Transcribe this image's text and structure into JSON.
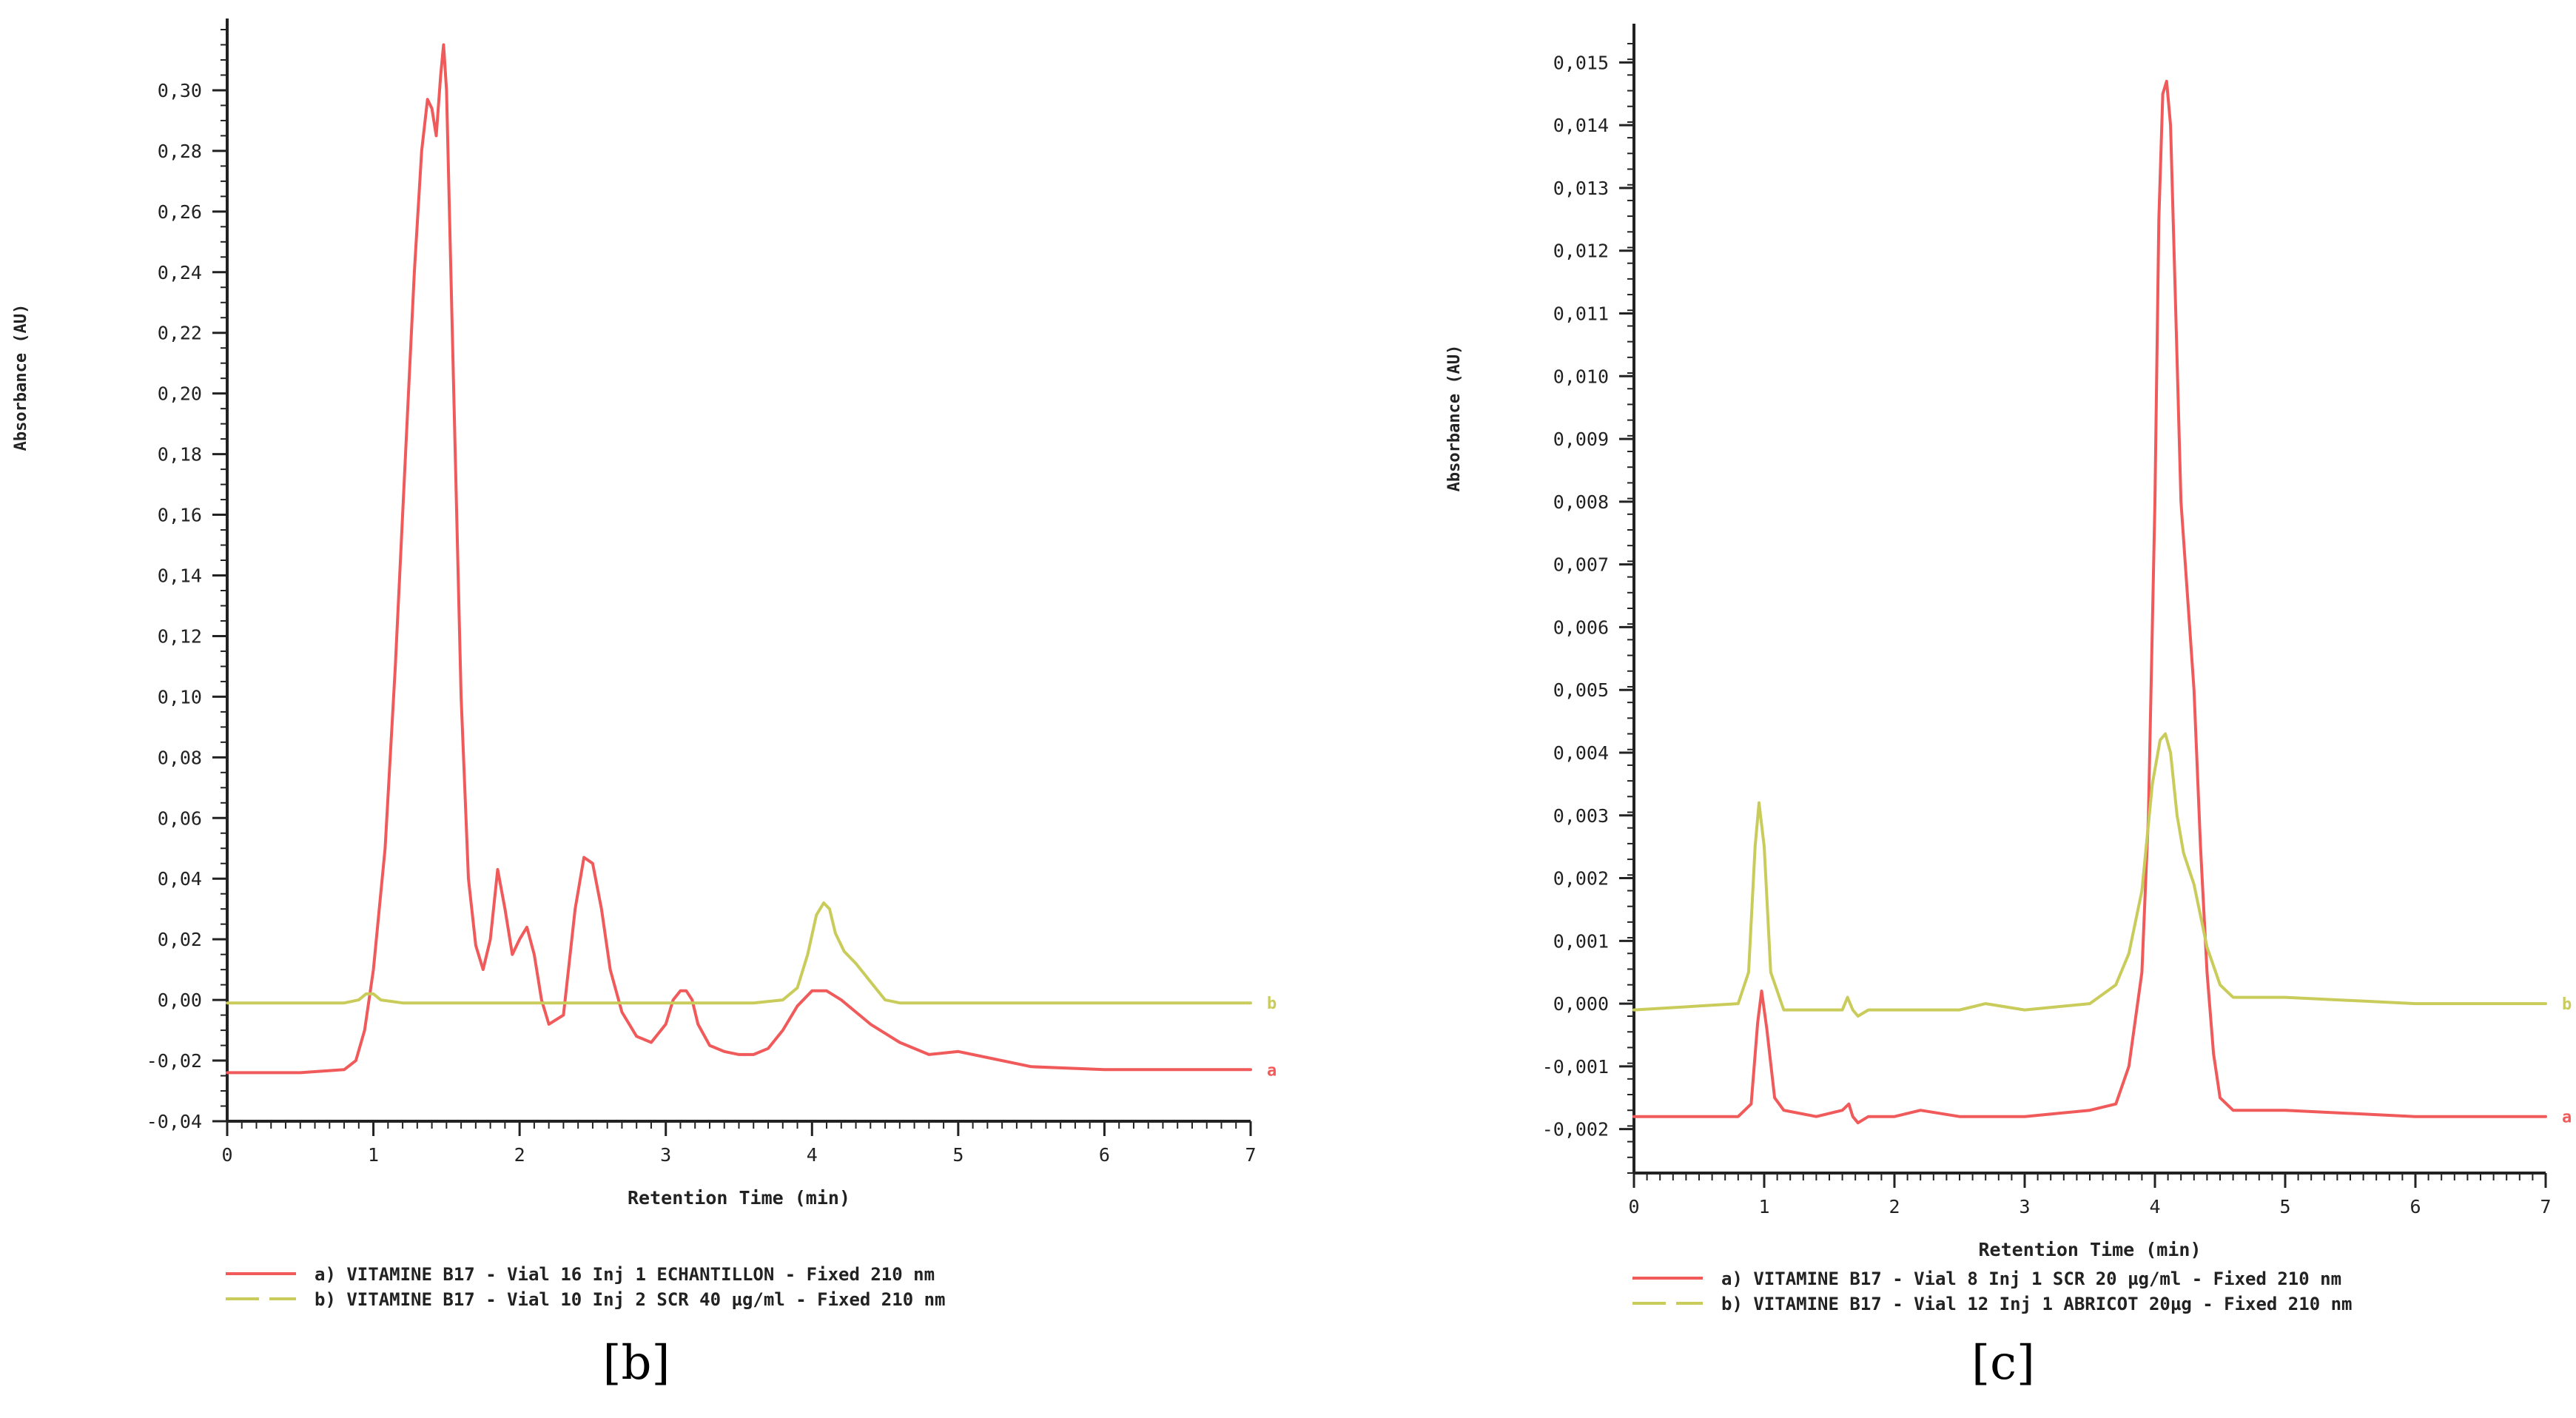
{
  "chart_data": [
    {
      "type": "line",
      "caption": "[b]",
      "xlabel": "Retention Time (min)",
      "ylabel": "Absorbance (AU)",
      "xlim": [
        0,
        7
      ],
      "ylim": [
        -0.04,
        0.32
      ],
      "xticks": [
        0,
        1,
        2,
        3,
        4,
        5,
        6,
        7
      ],
      "xtick_labels": [
        "0",
        "1",
        "2",
        "3",
        "4",
        "5",
        "6",
        "7"
      ],
      "yticks": [
        -0.04,
        -0.02,
        0.0,
        0.02,
        0.04,
        0.06,
        0.08,
        0.1,
        0.12,
        0.14,
        0.16,
        0.18,
        0.2,
        0.22,
        0.24,
        0.26,
        0.28,
        0.3
      ],
      "ytick_labels": [
        "-0,04",
        "-0,02",
        "0,00",
        "0,02",
        "0,04",
        "0,06",
        "0,08",
        "0,10",
        "0,12",
        "0,14",
        "0,16",
        "0,18",
        "0,20",
        "0,22",
        "0,24",
        "0,26",
        "0,28",
        "0,30"
      ],
      "series": [
        {
          "name": "a) VITAMINE B17 - Vial 16 Inj 1 ECHANTILLON  - Fixed 210 nm",
          "end_label": "a",
          "color": "#f05a5a",
          "dash": "solid",
          "x": [
            0,
            0.5,
            0.8,
            0.88,
            0.94,
            1.0,
            1.08,
            1.15,
            1.22,
            1.28,
            1.33,
            1.37,
            1.4,
            1.43,
            1.46,
            1.48,
            1.5,
            1.55,
            1.6,
            1.65,
            1.7,
            1.75,
            1.8,
            1.85,
            1.9,
            1.95,
            2.0,
            2.05,
            2.1,
            2.15,
            2.2,
            2.3,
            2.38,
            2.44,
            2.5,
            2.56,
            2.62,
            2.7,
            2.8,
            2.9,
            3.0,
            3.05,
            3.1,
            3.14,
            3.18,
            3.22,
            3.3,
            3.4,
            3.5,
            3.6,
            3.7,
            3.8,
            3.9,
            4.0,
            4.1,
            4.2,
            4.3,
            4.4,
            4.6,
            4.8,
            5.0,
            5.2,
            5.5,
            6.0,
            6.5,
            7.0
          ],
          "y": [
            -0.024,
            -0.024,
            -0.023,
            -0.02,
            -0.01,
            0.01,
            0.05,
            0.11,
            0.18,
            0.24,
            0.28,
            0.297,
            0.294,
            0.285,
            0.305,
            0.315,
            0.3,
            0.2,
            0.1,
            0.04,
            0.018,
            0.01,
            0.02,
            0.043,
            0.03,
            0.015,
            0.02,
            0.024,
            0.015,
            0.0,
            -0.008,
            -0.005,
            0.03,
            0.047,
            0.045,
            0.03,
            0.01,
            -0.004,
            -0.012,
            -0.014,
            -0.008,
            0.0,
            0.003,
            0.003,
            0.0,
            -0.008,
            -0.015,
            -0.017,
            -0.018,
            -0.018,
            -0.016,
            -0.01,
            -0.002,
            0.003,
            0.003,
            0.0,
            -0.004,
            -0.008,
            -0.014,
            -0.018,
            -0.017,
            -0.019,
            -0.022,
            -0.023,
            -0.023,
            -0.023
          ]
        },
        {
          "name": "b) VITAMINE B17 - Vial 10 Inj 2 SCR 40 µg/ml - Fixed 210 nm",
          "end_label": "b",
          "color": "#c9cc5a",
          "dash": "dashed",
          "x": [
            0,
            0.8,
            0.9,
            0.95,
            1.0,
            1.05,
            1.2,
            2.0,
            3.0,
            3.6,
            3.8,
            3.9,
            3.97,
            4.03,
            4.08,
            4.12,
            4.16,
            4.22,
            4.3,
            4.4,
            4.5,
            4.6,
            5.0,
            6.0,
            7.0
          ],
          "y": [
            -0.001,
            -0.001,
            0.0,
            0.002,
            0.002,
            0.0,
            -0.001,
            -0.001,
            -0.001,
            -0.001,
            0.0,
            0.004,
            0.015,
            0.028,
            0.032,
            0.03,
            0.022,
            0.016,
            0.012,
            0.006,
            0.0,
            -0.001,
            -0.001,
            -0.001,
            -0.001
          ]
        }
      ]
    },
    {
      "type": "line",
      "caption": "[c]",
      "xlabel": "Retention Time (min)",
      "ylabel": "Absorbance (AU)",
      "xlim": [
        0,
        7
      ],
      "ylim": [
        -0.0027,
        0.0155
      ],
      "xticks": [
        0,
        1,
        2,
        3,
        4,
        5,
        6,
        7
      ],
      "xtick_labels": [
        "0",
        "1",
        "2",
        "3",
        "4",
        "5",
        "6",
        "7"
      ],
      "yticks": [
        -0.002,
        -0.001,
        0.0,
        0.001,
        0.002,
        0.003,
        0.004,
        0.005,
        0.006,
        0.007,
        0.008,
        0.009,
        0.01,
        0.011,
        0.012,
        0.013,
        0.014,
        0.015
      ],
      "ytick_labels": [
        "-0,002",
        "-0,001",
        "0,000",
        "0,001",
        "0,002",
        "0,003",
        "0,004",
        "0,005",
        "0,006",
        "0,007",
        "0,008",
        "0,009",
        "0,010",
        "0,011",
        "0,012",
        "0,013",
        "0,014",
        "0,015"
      ],
      "series": [
        {
          "name": "a) VITAMINE B17 - Vial 8 Inj 1 SCR 20 µg/ml - Fixed 210 nm",
          "end_label": "a",
          "color": "#f05a5a",
          "dash": "solid",
          "x": [
            0,
            0.8,
            0.9,
            0.95,
            0.98,
            1.02,
            1.08,
            1.15,
            1.4,
            1.6,
            1.65,
            1.68,
            1.72,
            1.8,
            2.0,
            2.2,
            2.5,
            3.0,
            3.5,
            3.7,
            3.8,
            3.9,
            3.95,
            4.0,
            4.03,
            4.06,
            4.09,
            4.12,
            4.16,
            4.2,
            4.25,
            4.3,
            4.35,
            4.4,
            4.45,
            4.5,
            4.6,
            5.0,
            6.0,
            7.0
          ],
          "y": [
            -0.0018,
            -0.0018,
            -0.0016,
            -0.0003,
            0.0002,
            -0.0004,
            -0.0015,
            -0.0017,
            -0.0018,
            -0.0017,
            -0.0016,
            -0.0018,
            -0.0019,
            -0.0018,
            -0.0018,
            -0.0017,
            -0.0018,
            -0.0018,
            -0.0017,
            -0.0016,
            -0.001,
            0.0005,
            0.003,
            0.008,
            0.0125,
            0.0145,
            0.0147,
            0.014,
            0.011,
            0.008,
            0.0065,
            0.005,
            0.0025,
            0.0005,
            -0.0008,
            -0.0015,
            -0.0017,
            -0.0017,
            -0.0018,
            -0.0018
          ]
        },
        {
          "name": "b) VITAMINE B17 - Vial 12 Inj 1 ABRICOT 20µg - Fixed 210 nm",
          "end_label": "b",
          "color": "#c9cc5a",
          "dash": "dashed",
          "x": [
            0,
            0.8,
            0.88,
            0.93,
            0.96,
            1.0,
            1.05,
            1.15,
            1.4,
            1.6,
            1.64,
            1.68,
            1.72,
            1.8,
            2.0,
            2.5,
            2.7,
            3.0,
            3.5,
            3.7,
            3.8,
            3.9,
            3.98,
            4.04,
            4.08,
            4.12,
            4.17,
            4.22,
            4.3,
            4.4,
            4.5,
            4.6,
            5.0,
            6.0,
            7.0
          ],
          "y": [
            -0.0001,
            0.0,
            0.0005,
            0.0025,
            0.0032,
            0.0025,
            0.0005,
            -0.0001,
            -0.0001,
            -0.0001,
            0.0001,
            -0.0001,
            -0.0002,
            -0.0001,
            -0.0001,
            -0.0001,
            0.0,
            -0.0001,
            0.0,
            0.0003,
            0.0008,
            0.0018,
            0.0035,
            0.0042,
            0.0043,
            0.004,
            0.003,
            0.0024,
            0.0019,
            0.0009,
            0.0003,
            0.0001,
            0.0001,
            0.0,
            0.0
          ]
        }
      ]
    }
  ]
}
